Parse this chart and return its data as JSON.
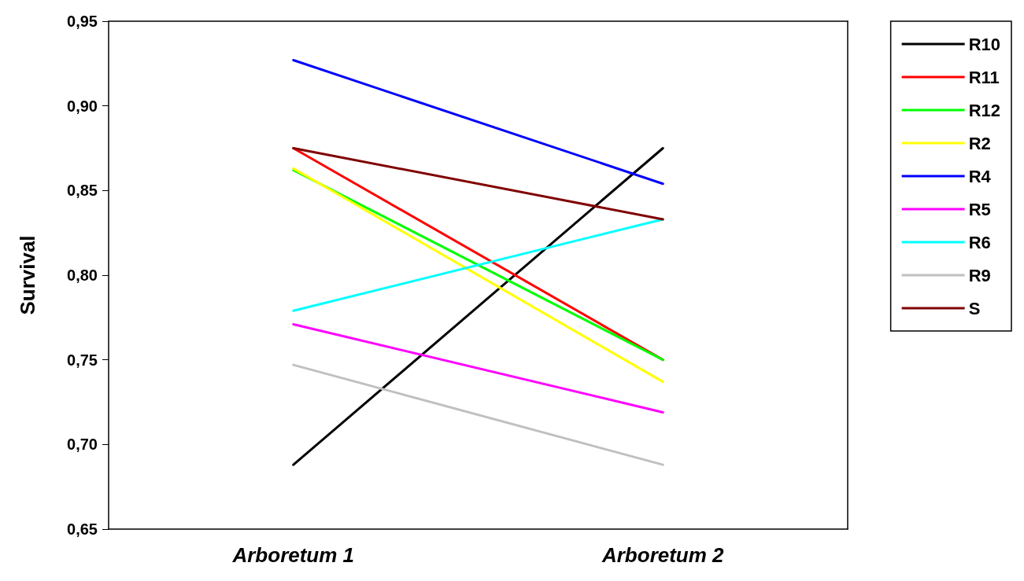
{
  "chart_data": {
    "type": "line",
    "ylabel": "Survival",
    "categories": [
      "Arboretum 1",
      "Arboretum 2"
    ],
    "series": [
      {
        "name": "R10",
        "color": "#000000",
        "values": [
          0.688,
          0.875
        ]
      },
      {
        "name": "R11",
        "color": "#ff0000",
        "values": [
          0.875,
          0.75
        ]
      },
      {
        "name": "R12",
        "color": "#00ff00",
        "values": [
          0.862,
          0.75
        ]
      },
      {
        "name": "R2",
        "color": "#ffff00",
        "values": [
          0.863,
          0.737
        ]
      },
      {
        "name": "R4",
        "color": "#0000ff",
        "values": [
          0.927,
          0.854
        ]
      },
      {
        "name": "R5",
        "color": "#ff00ff",
        "values": [
          0.771,
          0.719
        ]
      },
      {
        "name": "R6",
        "color": "#00ffff",
        "values": [
          0.779,
          0.833
        ]
      },
      {
        "name": "R9",
        "color": "#c0c0c0",
        "values": [
          0.747,
          0.688
        ]
      },
      {
        "name": "S",
        "color": "#800000",
        "values": [
          0.875,
          0.833
        ]
      }
    ],
    "ylim": [
      0.65,
      0.95
    ],
    "yticks": [
      {
        "value": 0.65,
        "label": "0,65"
      },
      {
        "value": 0.7,
        "label": "0,70"
      },
      {
        "value": 0.75,
        "label": "0,75"
      },
      {
        "value": 0.8,
        "label": "0,80"
      },
      {
        "value": 0.85,
        "label": "0,85"
      },
      {
        "value": 0.9,
        "label": "0,90"
      },
      {
        "value": 0.95,
        "label": "0,95"
      }
    ],
    "grid": false,
    "legend": "top right",
    "marker": "none",
    "line_style": "solid"
  }
}
